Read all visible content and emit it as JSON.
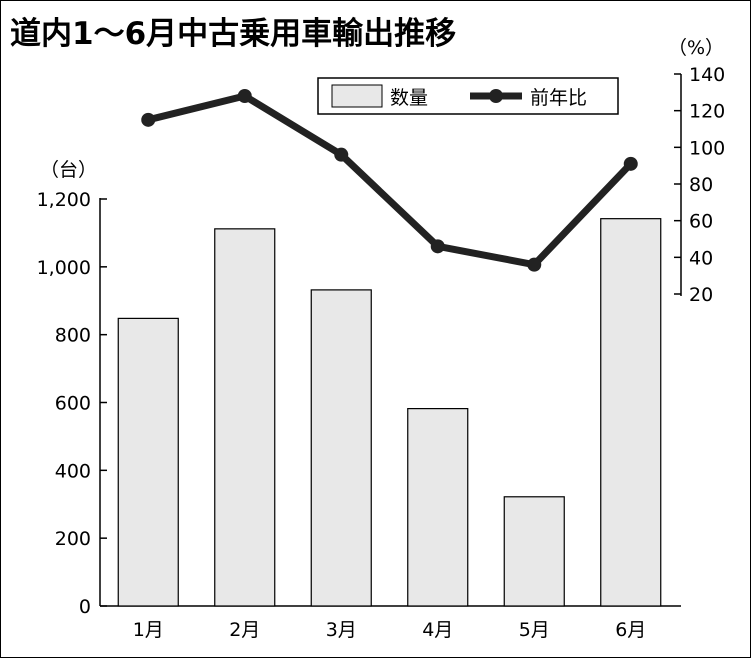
{
  "chart_data": {
    "type": "bar+line",
    "title": "道内1～6月中古乗用車輸出推移",
    "categories": [
      "1月",
      "2月",
      "3月",
      "4月",
      "5月",
      "6月"
    ],
    "series": [
      {
        "name": "数量",
        "type": "bar",
        "axis": "left",
        "values": [
          848,
          1112,
          932,
          582,
          322,
          1142
        ]
      },
      {
        "name": "前年比",
        "type": "line",
        "axis": "right",
        "values": [
          115,
          128,
          96,
          46,
          36,
          91
        ]
      }
    ],
    "y_left": {
      "unit": "（台）",
      "ylim": [
        0,
        1200
      ],
      "ticks": [
        0,
        200,
        400,
        600,
        800,
        1000,
        1200
      ],
      "tick_labels": [
        "0",
        "200",
        "400",
        "600",
        "800",
        "1,000",
        "1,200"
      ]
    },
    "y_right": {
      "unit": "（%）",
      "ylim": [
        20,
        140
      ],
      "ticks": [
        20,
        40,
        60,
        80,
        100,
        120,
        140
      ],
      "tick_labels": [
        "20",
        "40",
        "60",
        "80",
        "100",
        "120",
        "140"
      ]
    },
    "legend": {
      "placement": "top-right",
      "bar_label": "数量",
      "line_label": "前年比"
    },
    "colors": {
      "bar_fill": "#e8e8e8",
      "bar_stroke": "#000000",
      "line": "#222222"
    },
    "grid": false
  }
}
